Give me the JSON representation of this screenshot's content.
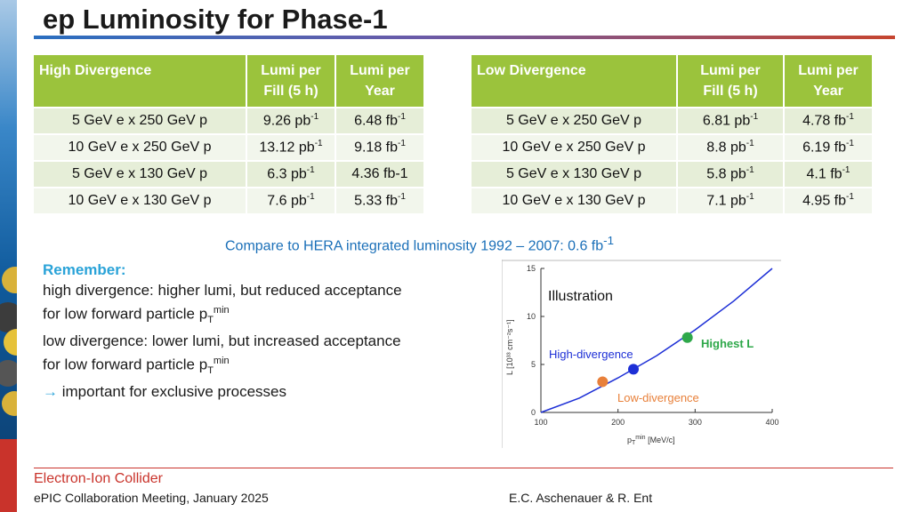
{
  "title": "ep Luminosity for Phase-1",
  "high_table": {
    "headers": [
      "High Divergence",
      "Lumi per\nFill (5 h)",
      "Lumi per\nYear"
    ],
    "rows": [
      [
        "5 GeV e x 250 GeV p",
        "9.26 pb",
        "-1",
        "6.48  fb",
        "-1"
      ],
      [
        "10 GeV e x 250 GeV p",
        "13.12 pb",
        "-1",
        "9.18 fb",
        "-1"
      ],
      [
        "5 GeV e x 130 GeV p",
        "6.3 pb",
        "-1",
        "4.36 fb-1",
        ""
      ],
      [
        "10 GeV e x 130 GeV p",
        "7.6 pb",
        "-1",
        "5.33 fb",
        "-1"
      ]
    ]
  },
  "low_table": {
    "headers": [
      "Low Divergence",
      "Lumi per\nFill (5 h)",
      "Lumi per\nYear"
    ],
    "rows": [
      [
        "5 GeV e x 250 GeV p",
        "6.81 pb",
        "-1",
        "4.78 fb",
        "-1"
      ],
      [
        "10 GeV e x 250 GeV p",
        "8.8 pb",
        "-1",
        "6.19 fb",
        "-1"
      ],
      [
        "5 GeV e x 130 GeV p",
        "5.8 pb",
        "-1",
        "4.1 fb",
        "-1"
      ],
      [
        "10 GeV e x 130 GeV p",
        "7.1 pb",
        "-1",
        "4.95 fb",
        "-1"
      ]
    ]
  },
  "hera_note": {
    "text": "Compare to HERA integrated luminosity 1992 – 2007: 0.6 fb",
    "sup": "-1"
  },
  "remember": {
    "title": "Remember:",
    "line1": "high divergence: higher lumi, but reduced acceptance",
    "line2": "for low forward particle p",
    "line3": "low divergence: lower lumi, but increased acceptance",
    "line4": "for low forward particle p",
    "sub": "T",
    "sup": "min",
    "arrow": "→",
    "line5": "important for exclusive processes"
  },
  "chart_data": {
    "type": "line",
    "title": "Illustration",
    "xlabel": "pT min [MeV/c]",
    "ylabel": "L [10^33 cm^-2 s^-1]",
    "xlim": [
      100,
      400
    ],
    "ylim": [
      0,
      15
    ],
    "xticks": [
      100,
      200,
      300,
      400
    ],
    "yticks": [
      0,
      5,
      10,
      15
    ],
    "x": [
      100,
      150,
      200,
      250,
      300,
      350,
      400
    ],
    "y": [
      0.0,
      1.5,
      3.6,
      5.9,
      8.6,
      11.6,
      15.0
    ],
    "points": [
      {
        "name": "Low-divergence",
        "x": 180,
        "y": 3.2,
        "color": "#e8803a"
      },
      {
        "name": "High-divergence",
        "x": 220,
        "y": 4.5,
        "color": "#1d2fd6"
      },
      {
        "name": "Highest L",
        "x": 290,
        "y": 7.8,
        "color": "#2ea84a"
      }
    ],
    "labels": {
      "illustration": "Illustration",
      "high": "High-divergence",
      "low": "Low-divergence",
      "highest": "Highest L",
      "xlabel_main": "p",
      "xlabel_sub": "T",
      "xlabel_sup": "min",
      "xlabel_unit": " [MeV/c]",
      "ylabel": "L [10³³ cm⁻²s⁻¹]"
    },
    "colors": {
      "curve": "#1d2fd6",
      "highest": "#2ea84a",
      "low": "#e8803a"
    }
  },
  "footer": {
    "brand": "Electron-Ion Collider",
    "left": "ePIC Collaboration Meeting, January 2025",
    "right": "E.C. Aschenauer & R. Ent"
  }
}
